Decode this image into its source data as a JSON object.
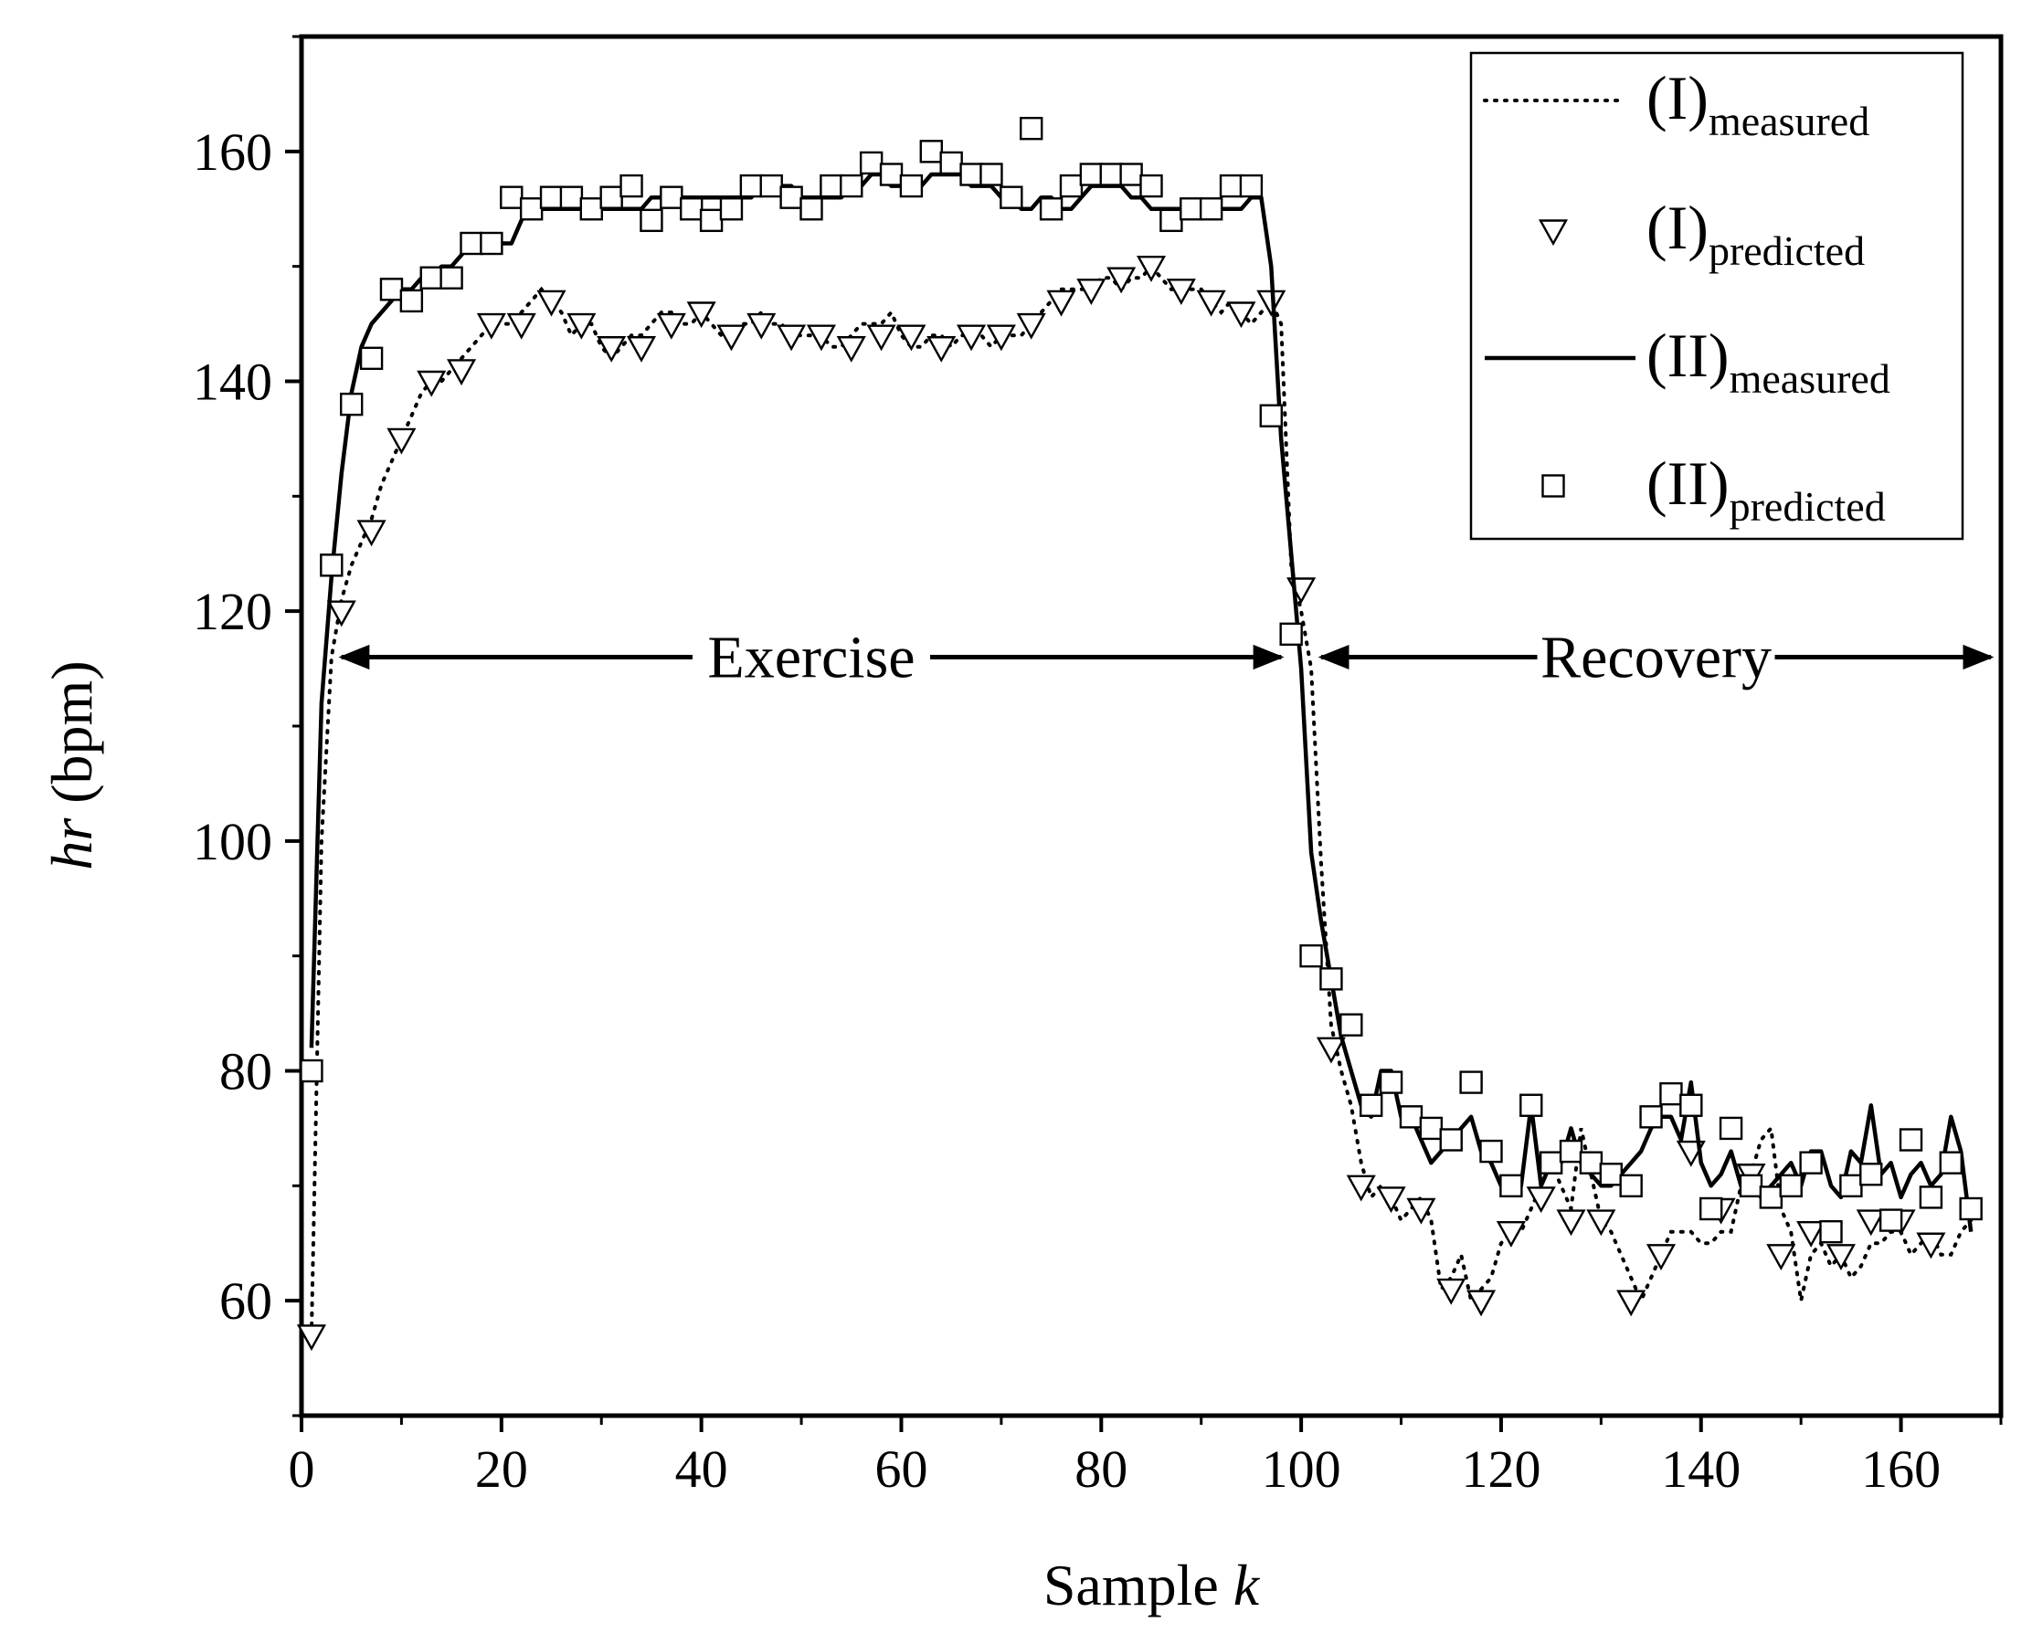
{
  "chart_data": {
    "type": "line",
    "xlabel": {
      "main": "Sample ",
      "italic": "k"
    },
    "ylabel": {
      "italic": "hr",
      "main": " (bpm)"
    },
    "xlim": [
      0,
      170
    ],
    "ylim": [
      50,
      170
    ],
    "xticks": [
      0,
      20,
      40,
      60,
      80,
      100,
      120,
      140,
      160
    ],
    "yticks": [
      60,
      80,
      100,
      120,
      140,
      160
    ],
    "grid": false,
    "legend_position": "top-right",
    "annotations": [
      {
        "text": "Exercise",
        "from": 4,
        "to": 98,
        "y": 116
      },
      {
        "text": "Recovery",
        "from": 102,
        "to": 169,
        "y": 116
      }
    ],
    "series": [
      {
        "name": "(I)",
        "subscript": "measured",
        "style": "dotted-line",
        "x": [
          1,
          2,
          3,
          4,
          5,
          6,
          7,
          8,
          9,
          10,
          11,
          12,
          13,
          14,
          15,
          16,
          17,
          18,
          19,
          20,
          21,
          22,
          23,
          24,
          25,
          26,
          27,
          28,
          29,
          30,
          31,
          32,
          33,
          34,
          35,
          36,
          37,
          38,
          39,
          40,
          41,
          42,
          43,
          44,
          45,
          46,
          47,
          48,
          49,
          50,
          51,
          52,
          53,
          54,
          55,
          56,
          57,
          58,
          59,
          60,
          61,
          62,
          63,
          64,
          65,
          66,
          67,
          68,
          69,
          70,
          71,
          72,
          73,
          74,
          75,
          76,
          77,
          78,
          79,
          80,
          81,
          82,
          83,
          84,
          85,
          86,
          87,
          88,
          89,
          90,
          91,
          92,
          93,
          94,
          95,
          96,
          97,
          98,
          99,
          100,
          101,
          102,
          103,
          104,
          105,
          106,
          107,
          108,
          109,
          110,
          111,
          112,
          113,
          114,
          115,
          116,
          117,
          118,
          119,
          120,
          121,
          122,
          123,
          124,
          125,
          126,
          127,
          128,
          129,
          130,
          131,
          132,
          133,
          134,
          135,
          136,
          137,
          138,
          139,
          140,
          141,
          142,
          143,
          144,
          145,
          146,
          147,
          148,
          149,
          150,
          151,
          152,
          153,
          154,
          155,
          156,
          157,
          158,
          159,
          160,
          161,
          162,
          163,
          164,
          165,
          166,
          167
        ],
        "values": [
          57,
          100,
          116,
          121,
          124,
          126,
          128,
          131,
          133,
          135,
          137,
          139,
          140,
          140,
          141,
          142,
          143,
          144,
          145,
          145,
          145,
          146,
          147,
          148,
          147,
          146,
          144,
          145,
          145,
          143,
          142,
          143,
          144,
          144,
          145,
          146,
          146,
          145,
          145,
          146,
          145,
          144,
          144,
          145,
          145,
          146,
          145,
          145,
          144,
          144,
          144,
          144,
          143,
          143,
          144,
          145,
          145,
          145,
          146,
          144,
          143,
          143,
          144,
          144,
          143,
          144,
          144,
          144,
          143,
          144,
          144,
          144,
          145,
          146,
          147,
          148,
          148,
          148,
          148,
          149,
          149,
          148,
          149,
          149,
          150,
          149,
          148,
          148,
          148,
          148,
          147,
          146,
          147,
          146,
          145,
          146,
          147,
          145,
          124,
          120,
          115,
          98,
          84,
          80,
          77,
          72,
          69,
          70,
          69,
          67,
          68,
          69,
          67,
          61,
          62,
          64,
          60,
          61,
          62,
          65,
          66,
          66,
          68,
          70,
          72,
          70,
          68,
          75,
          71,
          67,
          66,
          64,
          62,
          60,
          62,
          64,
          66,
          66,
          66,
          65,
          65,
          66,
          66,
          70,
          71,
          74,
          75,
          68,
          66,
          60,
          64,
          65,
          63,
          64,
          62,
          63,
          65,
          65,
          66,
          66,
          64,
          65,
          66,
          64,
          64,
          66,
          67
        ]
      },
      {
        "name": "(I)",
        "subscript": "predicted",
        "style": "marker-triangle-down",
        "x": [
          1,
          4,
          7,
          10,
          13,
          16,
          19,
          22,
          25,
          28,
          31,
          34,
          37,
          40,
          43,
          46,
          49,
          52,
          55,
          58,
          61,
          64,
          67,
          70,
          73,
          76,
          79,
          82,
          85,
          88,
          91,
          94,
          97,
          100,
          103,
          106,
          109,
          112,
          115,
          118,
          121,
          124,
          127,
          130,
          133,
          136,
          139,
          142,
          145,
          148,
          151,
          154,
          157,
          160,
          163
        ],
        "values": [
          57,
          120,
          127,
          135,
          140,
          141,
          145,
          145,
          147,
          145,
          143,
          143,
          145,
          146,
          144,
          145,
          144,
          144,
          143,
          144,
          144,
          143,
          144,
          144,
          145,
          147,
          148,
          149,
          150,
          148,
          147,
          146,
          147,
          122,
          82,
          70,
          69,
          68,
          61,
          60,
          66,
          69,
          67,
          67,
          60,
          64,
          73,
          68,
          71,
          64,
          66,
          64,
          67,
          67,
          65
        ]
      },
      {
        "name": "(II)",
        "subscript": "measured",
        "style": "solid-line",
        "x": [
          1,
          2,
          3,
          4,
          5,
          6,
          7,
          8,
          9,
          10,
          11,
          12,
          13,
          14,
          15,
          16,
          17,
          18,
          19,
          20,
          21,
          22,
          23,
          24,
          25,
          26,
          27,
          28,
          29,
          30,
          31,
          32,
          33,
          34,
          35,
          36,
          37,
          38,
          39,
          40,
          41,
          42,
          43,
          44,
          45,
          46,
          47,
          48,
          49,
          50,
          51,
          52,
          53,
          54,
          55,
          56,
          57,
          58,
          59,
          60,
          61,
          62,
          63,
          64,
          65,
          66,
          67,
          68,
          69,
          70,
          71,
          72,
          73,
          74,
          75,
          76,
          77,
          78,
          79,
          80,
          81,
          82,
          83,
          84,
          85,
          86,
          87,
          88,
          89,
          90,
          91,
          92,
          93,
          94,
          95,
          96,
          97,
          98,
          99,
          100,
          101,
          102,
          103,
          104,
          105,
          106,
          107,
          108,
          109,
          110,
          111,
          112,
          113,
          114,
          115,
          116,
          117,
          118,
          119,
          120,
          121,
          122,
          123,
          124,
          125,
          126,
          127,
          128,
          129,
          130,
          131,
          132,
          133,
          134,
          135,
          136,
          137,
          138,
          139,
          140,
          141,
          142,
          143,
          144,
          145,
          146,
          147,
          148,
          149,
          150,
          151,
          152,
          153,
          154,
          155,
          156,
          157,
          158,
          159,
          160,
          161,
          162,
          163,
          164,
          165,
          166,
          167
        ],
        "values": [
          82,
          112,
          123,
          132,
          139,
          143,
          145,
          146,
          147,
          148,
          148,
          149,
          149,
          150,
          150,
          151,
          152,
          152,
          152,
          152,
          152,
          154,
          155,
          155,
          155,
          155,
          155,
          155,
          155,
          155,
          155,
          155,
          155,
          155,
          156,
          156,
          156,
          156,
          156,
          156,
          156,
          156,
          156,
          156,
          156,
          157,
          157,
          157,
          157,
          156,
          156,
          156,
          156,
          156,
          157,
          157,
          158,
          158,
          157,
          157,
          157,
          157,
          158,
          158,
          158,
          158,
          157,
          157,
          157,
          156,
          156,
          155,
          155,
          156,
          156,
          155,
          155,
          156,
          157,
          157,
          157,
          157,
          156,
          156,
          155,
          155,
          155,
          155,
          155,
          155,
          155,
          155,
          155,
          155,
          156,
          156,
          150,
          135,
          125,
          115,
          99,
          93,
          88,
          83,
          80,
          77,
          76,
          80,
          80,
          76,
          76,
          74,
          72,
          73,
          74,
          75,
          76,
          73,
          72,
          70,
          70,
          70,
          77,
          70,
          72,
          72,
          75,
          72,
          71,
          70,
          70,
          71,
          72,
          73,
          75,
          76,
          76,
          74,
          79,
          72,
          70,
          71,
          73,
          70,
          70,
          69,
          70,
          71,
          72,
          70,
          73,
          73,
          70,
          69,
          73,
          72,
          77,
          71,
          72,
          69,
          71,
          72,
          70,
          71,
          76,
          73,
          66
        ]
      },
      {
        "name": "(II)",
        "subscript": "predicted",
        "style": "marker-square",
        "x": [
          1,
          3,
          5,
          7,
          9,
          11,
          13,
          15,
          17,
          19,
          21,
          23,
          25,
          27,
          29,
          31,
          33,
          35,
          37,
          39,
          41,
          43,
          45,
          47,
          49,
          51,
          53,
          55,
          57,
          59,
          61,
          63,
          65,
          67,
          69,
          71,
          73,
          75,
          77,
          79,
          81,
          83,
          85,
          87,
          89,
          91,
          93,
          95,
          97,
          99,
          101,
          103,
          105,
          107,
          109,
          111,
          113,
          115,
          117,
          119,
          121,
          123,
          125,
          127,
          129,
          131,
          133,
          135,
          137,
          139,
          141,
          143,
          145,
          147,
          149,
          151,
          153,
          155,
          157,
          159,
          161,
          163,
          165,
          167
        ],
        "values": [
          80,
          124,
          138,
          142,
          148,
          147,
          149,
          149,
          152,
          152,
          156,
          155,
          156,
          156,
          155,
          156,
          157,
          154,
          156,
          155,
          154,
          155,
          157,
          157,
          156,
          155,
          157,
          157,
          159,
          158,
          157,
          160,
          159,
          158,
          158,
          156,
          162,
          155,
          157,
          158,
          158,
          158,
          157,
          154,
          155,
          155,
          157,
          157,
          137,
          118,
          90,
          88,
          84,
          77,
          79,
          76,
          75,
          74,
          79,
          73,
          70,
          77,
          72,
          73,
          72,
          71,
          70,
          76,
          78,
          77,
          68,
          75,
          70,
          69,
          70,
          72,
          66,
          70,
          71,
          67,
          74,
          69,
          72,
          68
        ]
      }
    ]
  }
}
